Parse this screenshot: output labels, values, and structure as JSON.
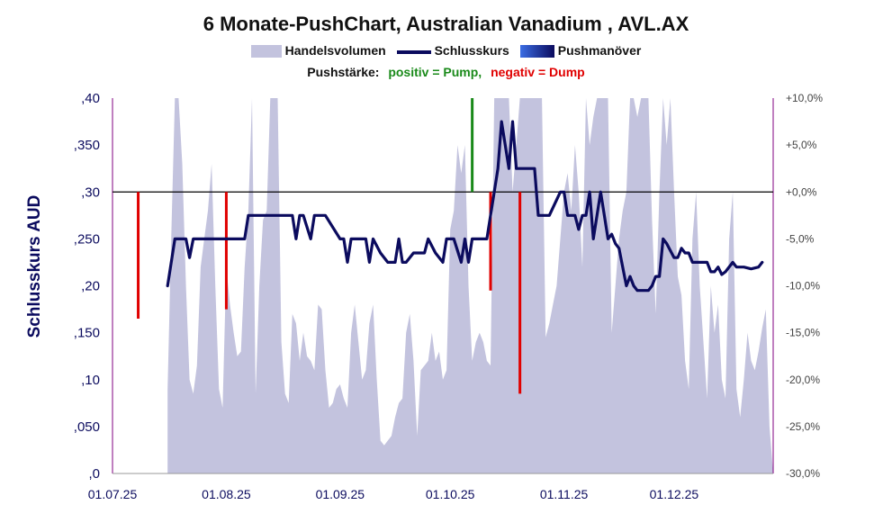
{
  "chart_data": {
    "type": "line",
    "title": "6 Monate-PushChart, Australian Vanadium , AVL.AX",
    "legend": {
      "volume": "Handelsvolumen",
      "close": "Schlusskurs",
      "push": "Pushmanöver",
      "push_strength_label": "Pushstärke:",
      "positive": "positiv = Pump,",
      "negative": "negativ = Dump",
      "placement": "top-center"
    },
    "ylabel": "Schlusskurs AUD",
    "y_left_ticks": [
      ",0",
      ",050",
      ",10",
      ",150",
      ",20",
      ",250",
      ",30",
      ",350",
      ",40"
    ],
    "y_right_ticks": [
      "-30,0%",
      "-25,0%",
      "-20,0%",
      "-15,0%",
      "-10,0%",
      "-5,0%",
      "+0,0%",
      "+5,0%",
      "+10,0%"
    ],
    "x_ticks": [
      "01.07.25",
      "01.08.25",
      "01.09.25",
      "01.10.25",
      "01.11.25",
      "01.12.25"
    ],
    "x_range_days": [
      0,
      180
    ],
    "ylim_left": [
      0,
      0.4
    ],
    "ylim_right": [
      -30,
      10
    ],
    "zero_reference": 0.3,
    "colors": {
      "volume": "#c3c3de",
      "close": "#0b0b5e",
      "pump": "#1a8a1a",
      "dump": "#e00000",
      "axis_left": "#800080",
      "axis_right": "#800080"
    },
    "volume": [
      [
        15,
        0.09
      ],
      [
        16,
        0.25
      ],
      [
        17,
        0.4
      ],
      [
        18,
        0.4
      ],
      [
        19,
        0.33
      ],
      [
        20,
        0.2
      ],
      [
        21,
        0.1
      ],
      [
        22,
        0.085
      ],
      [
        23,
        0.115
      ],
      [
        24,
        0.22
      ],
      [
        25,
        0.25
      ],
      [
        26,
        0.28
      ],
      [
        27,
        0.33
      ],
      [
        28,
        0.2
      ],
      [
        29,
        0.09
      ],
      [
        30,
        0.07
      ],
      [
        31,
        0.22
      ],
      [
        32,
        0.18
      ],
      [
        33,
        0.15
      ],
      [
        34,
        0.125
      ],
      [
        35,
        0.13
      ],
      [
        36,
        0.22
      ],
      [
        37,
        0.28
      ],
      [
        38,
        0.4
      ],
      [
        39,
        0.085
      ],
      [
        40,
        0.2
      ],
      [
        41,
        0.27
      ],
      [
        42,
        0.28
      ],
      [
        43,
        0.4
      ],
      [
        44,
        0.4
      ],
      [
        45,
        0.4
      ],
      [
        46,
        0.14
      ],
      [
        47,
        0.085
      ],
      [
        48,
        0.075
      ],
      [
        49,
        0.17
      ],
      [
        50,
        0.16
      ],
      [
        51,
        0.12
      ],
      [
        52,
        0.15
      ],
      [
        53,
        0.125
      ],
      [
        54,
        0.12
      ],
      [
        55,
        0.11
      ],
      [
        56,
        0.18
      ],
      [
        57,
        0.175
      ],
      [
        58,
        0.11
      ],
      [
        59,
        0.07
      ],
      [
        60,
        0.075
      ],
      [
        61,
        0.09
      ],
      [
        62,
        0.095
      ],
      [
        63,
        0.08
      ],
      [
        64,
        0.07
      ],
      [
        65,
        0.15
      ],
      [
        66,
        0.18
      ],
      [
        67,
        0.14
      ],
      [
        68,
        0.1
      ],
      [
        69,
        0.11
      ],
      [
        70,
        0.16
      ],
      [
        71,
        0.18
      ],
      [
        72,
        0.1
      ],
      [
        73,
        0.035
      ],
      [
        74,
        0.03
      ],
      [
        75,
        0.035
      ],
      [
        76,
        0.04
      ],
      [
        77,
        0.06
      ],
      [
        78,
        0.075
      ],
      [
        79,
        0.08
      ],
      [
        80,
        0.15
      ],
      [
        81,
        0.17
      ],
      [
        82,
        0.12
      ],
      [
        83,
        0.04
      ],
      [
        84,
        0.11
      ],
      [
        85,
        0.115
      ],
      [
        86,
        0.12
      ],
      [
        87,
        0.15
      ],
      [
        88,
        0.12
      ],
      [
        89,
        0.13
      ],
      [
        90,
        0.1
      ],
      [
        91,
        0.11
      ],
      [
        92,
        0.26
      ],
      [
        93,
        0.28
      ],
      [
        94,
        0.35
      ],
      [
        95,
        0.32
      ],
      [
        96,
        0.35
      ],
      [
        97,
        0.2
      ],
      [
        98,
        0.12
      ],
      [
        99,
        0.14
      ],
      [
        100,
        0.15
      ],
      [
        101,
        0.14
      ],
      [
        102,
        0.12
      ],
      [
        103,
        0.115
      ],
      [
        104,
        0.4
      ],
      [
        105,
        0.4
      ],
      [
        106,
        0.4
      ],
      [
        107,
        0.4
      ],
      [
        108,
        0.4
      ],
      [
        109,
        0.3
      ],
      [
        110,
        0.35
      ],
      [
        111,
        0.4
      ],
      [
        112,
        0.4
      ],
      [
        113,
        0.4
      ],
      [
        114,
        0.4
      ],
      [
        115,
        0.4
      ],
      [
        116,
        0.4
      ],
      [
        117,
        0.4
      ],
      [
        118,
        0.145
      ],
      [
        119,
        0.16
      ],
      [
        120,
        0.18
      ],
      [
        121,
        0.2
      ],
      [
        122,
        0.25
      ],
      [
        123,
        0.3
      ],
      [
        124,
        0.32
      ],
      [
        125,
        0.28
      ],
      [
        126,
        0.35
      ],
      [
        127,
        0.3
      ],
      [
        128,
        0.22
      ],
      [
        129,
        0.4
      ],
      [
        130,
        0.35
      ],
      [
        131,
        0.38
      ],
      [
        132,
        0.4
      ],
      [
        133,
        0.4
      ],
      [
        134,
        0.4
      ],
      [
        135,
        0.4
      ],
      [
        136,
        0.15
      ],
      [
        137,
        0.2
      ],
      [
        138,
        0.25
      ],
      [
        139,
        0.28
      ],
      [
        140,
        0.3
      ],
      [
        141,
        0.4
      ],
      [
        142,
        0.4
      ],
      [
        143,
        0.38
      ],
      [
        144,
        0.4
      ],
      [
        145,
        0.4
      ],
      [
        146,
        0.4
      ],
      [
        147,
        0.27
      ],
      [
        148,
        0.17
      ],
      [
        149,
        0.3
      ],
      [
        150,
        0.4
      ],
      [
        151,
        0.35
      ],
      [
        152,
        0.4
      ],
      [
        153,
        0.3
      ],
      [
        154,
        0.21
      ],
      [
        155,
        0.19
      ],
      [
        156,
        0.12
      ],
      [
        157,
        0.09
      ],
      [
        158,
        0.25
      ],
      [
        159,
        0.3
      ],
      [
        160,
        0.2
      ],
      [
        161,
        0.14
      ],
      [
        162,
        0.08
      ],
      [
        163,
        0.2
      ],
      [
        164,
        0.15
      ],
      [
        165,
        0.18
      ],
      [
        166,
        0.1
      ],
      [
        167,
        0.08
      ],
      [
        168,
        0.25
      ],
      [
        169,
        0.3
      ],
      [
        170,
        0.09
      ],
      [
        171,
        0.06
      ],
      [
        172,
        0.1
      ],
      [
        173,
        0.15
      ],
      [
        174,
        0.12
      ],
      [
        175,
        0.11
      ],
      [
        176,
        0.13
      ],
      [
        177,
        0.155
      ],
      [
        178,
        0.175
      ],
      [
        179,
        0.05
      ],
      [
        180,
        0.0
      ]
    ],
    "close": [
      [
        15,
        0.2
      ],
      [
        17,
        0.25
      ],
      [
        20,
        0.25
      ],
      [
        21,
        0.23
      ],
      [
        22,
        0.25
      ],
      [
        25,
        0.25
      ],
      [
        29,
        0.25
      ],
      [
        32,
        0.25
      ],
      [
        36,
        0.25
      ],
      [
        37,
        0.275
      ],
      [
        43,
        0.275
      ],
      [
        49,
        0.275
      ],
      [
        50,
        0.25
      ],
      [
        51,
        0.275
      ],
      [
        52,
        0.275
      ],
      [
        54,
        0.25
      ],
      [
        55,
        0.275
      ],
      [
        58,
        0.275
      ],
      [
        62,
        0.25
      ],
      [
        63,
        0.25
      ],
      [
        64,
        0.225
      ],
      [
        65,
        0.25
      ],
      [
        69,
        0.25
      ],
      [
        70,
        0.225
      ],
      [
        71,
        0.25
      ],
      [
        73,
        0.235
      ],
      [
        75,
        0.225
      ],
      [
        77,
        0.225
      ],
      [
        78,
        0.25
      ],
      [
        79,
        0.225
      ],
      [
        80,
        0.225
      ],
      [
        82,
        0.235
      ],
      [
        85,
        0.235
      ],
      [
        86,
        0.25
      ],
      [
        88,
        0.235
      ],
      [
        90,
        0.225
      ],
      [
        91,
        0.25
      ],
      [
        93,
        0.25
      ],
      [
        95,
        0.225
      ],
      [
        96,
        0.25
      ],
      [
        97,
        0.225
      ],
      [
        98,
        0.25
      ],
      [
        102,
        0.25
      ],
      [
        104,
        0.3
      ],
      [
        105,
        0.325
      ],
      [
        106,
        0.375
      ],
      [
        107,
        0.35
      ],
      [
        108,
        0.325
      ],
      [
        109,
        0.375
      ],
      [
        110,
        0.325
      ],
      [
        115,
        0.325
      ],
      [
        116,
        0.275
      ],
      [
        119,
        0.275
      ],
      [
        122,
        0.3
      ],
      [
        123,
        0.3
      ],
      [
        124,
        0.275
      ],
      [
        126,
        0.275
      ],
      [
        127,
        0.26
      ],
      [
        128,
        0.275
      ],
      [
        129,
        0.275
      ],
      [
        130,
        0.3
      ],
      [
        131,
        0.25
      ],
      [
        133,
        0.3
      ],
      [
        134,
        0.275
      ],
      [
        135,
        0.25
      ],
      [
        136,
        0.255
      ],
      [
        137,
        0.245
      ],
      [
        138,
        0.24
      ],
      [
        139,
        0.22
      ],
      [
        140,
        0.2
      ],
      [
        141,
        0.21
      ],
      [
        142,
        0.2
      ],
      [
        143,
        0.195
      ],
      [
        146,
        0.195
      ],
      [
        147,
        0.2
      ],
      [
        148,
        0.21
      ],
      [
        149,
        0.21
      ],
      [
        150,
        0.25
      ],
      [
        151,
        0.245
      ],
      [
        153,
        0.23
      ],
      [
        154,
        0.23
      ],
      [
        155,
        0.24
      ],
      [
        156,
        0.235
      ],
      [
        157,
        0.235
      ],
      [
        158,
        0.225
      ],
      [
        162,
        0.225
      ],
      [
        163,
        0.215
      ],
      [
        164,
        0.215
      ],
      [
        165,
        0.22
      ],
      [
        166,
        0.212
      ],
      [
        167,
        0.215
      ],
      [
        169,
        0.225
      ],
      [
        170,
        0.22
      ],
      [
        172,
        0.22
      ],
      [
        174,
        0.218
      ],
      [
        176,
        0.22
      ],
      [
        177,
        0.225
      ]
    ],
    "push": [
      {
        "x": 7,
        "value": -13.5,
        "kind": "dump"
      },
      {
        "x": 31,
        "value": -12.5,
        "kind": "dump"
      },
      {
        "x": 98,
        "value": 10.0,
        "kind": "pump"
      },
      {
        "x": 103,
        "value": -10.5,
        "kind": "dump"
      },
      {
        "x": 111,
        "value": -21.5,
        "kind": "dump"
      }
    ]
  }
}
